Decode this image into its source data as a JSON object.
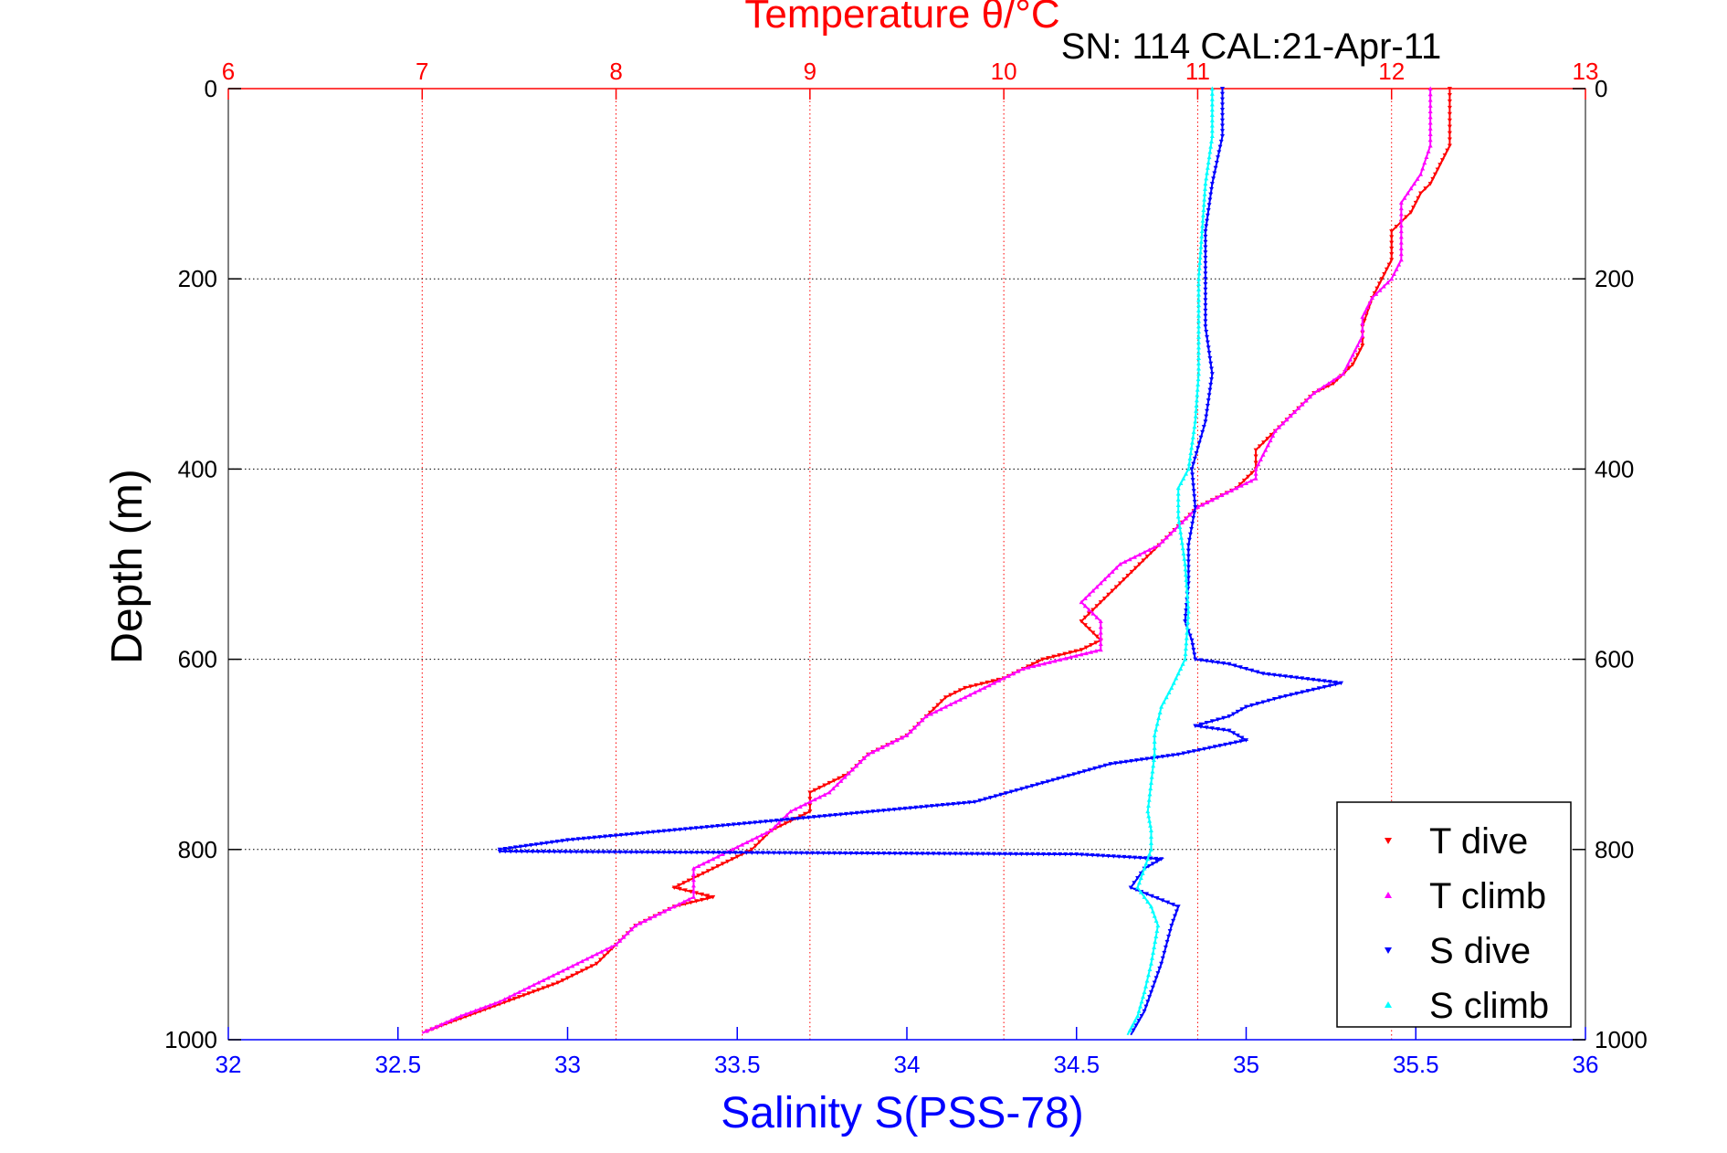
{
  "chart_data": {
    "type": "scatter",
    "title": "Temperature θ/°C",
    "subtitle": "SN: 114  CAL:21-Apr-11",
    "xlabel_bottom": "Salinity S(PSS-78)",
    "xlabel_top": "Temperature θ/°C",
    "ylabel": "Depth (m)",
    "xlim_bottom": [
      32,
      36
    ],
    "xlim_top": [
      6,
      13
    ],
    "ylim": [
      0,
      1000
    ],
    "y_reversed": true,
    "grid": true,
    "legend_position": "bottom-right",
    "ticks_top": [
      "6",
      "7",
      "8",
      "9",
      "10",
      "11",
      "12",
      "13"
    ],
    "ticks_bottom": [
      "32",
      "32.5",
      "33",
      "33.5",
      "34",
      "34.5",
      "35",
      "35.5",
      "36"
    ],
    "ticks_left": [
      "0",
      "200",
      "400",
      "600",
      "800",
      "1000"
    ],
    "ticks_right": [
      "0",
      "200",
      "400",
      "600",
      "800",
      "1000"
    ],
    "colors": {
      "t_axis": "#ff0000",
      "s_axis": "#0000ff",
      "t_dive": "#ff0000",
      "t_climb": "#ff00ff",
      "s_dive": "#0000ff",
      "s_climb": "#00ffff"
    },
    "series": [
      {
        "name": "T dive",
        "axis": "temperature",
        "points": [
          [
            12.3,
            0
          ],
          [
            12.3,
            20
          ],
          [
            12.3,
            40
          ],
          [
            12.3,
            60
          ],
          [
            12.25,
            80
          ],
          [
            12.2,
            100
          ],
          [
            12.15,
            110
          ],
          [
            12.1,
            130
          ],
          [
            12.05,
            140
          ],
          [
            12.0,
            150
          ],
          [
            12.0,
            180
          ],
          [
            11.95,
            200
          ],
          [
            11.9,
            220
          ],
          [
            11.85,
            250
          ],
          [
            11.85,
            270
          ],
          [
            11.8,
            290
          ],
          [
            11.7,
            310
          ],
          [
            11.6,
            320
          ],
          [
            11.5,
            340
          ],
          [
            11.4,
            360
          ],
          [
            11.3,
            380
          ],
          [
            11.3,
            400
          ],
          [
            11.2,
            420
          ],
          [
            11.0,
            440
          ],
          [
            10.9,
            460
          ],
          [
            10.8,
            480
          ],
          [
            10.7,
            500
          ],
          [
            10.6,
            520
          ],
          [
            10.5,
            540
          ],
          [
            10.4,
            560
          ],
          [
            10.5,
            580
          ],
          [
            10.4,
            590
          ],
          [
            10.2,
            600
          ],
          [
            10.0,
            620
          ],
          [
            9.8,
            630
          ],
          [
            9.7,
            640
          ],
          [
            9.6,
            660
          ],
          [
            9.5,
            680
          ],
          [
            9.3,
            700
          ],
          [
            9.2,
            720
          ],
          [
            9.0,
            740
          ],
          [
            9.0,
            760
          ],
          [
            8.8,
            780
          ],
          [
            8.7,
            800
          ],
          [
            8.5,
            820
          ],
          [
            8.3,
            840
          ],
          [
            8.5,
            850
          ],
          [
            8.3,
            860
          ],
          [
            8.1,
            880
          ],
          [
            8.0,
            900
          ],
          [
            7.9,
            920
          ],
          [
            7.7,
            940
          ],
          [
            7.5,
            955
          ],
          [
            7.3,
            970
          ],
          [
            7.1,
            985
          ],
          [
            7.0,
            993
          ]
        ]
      },
      {
        "name": "T climb",
        "axis": "temperature",
        "points": [
          [
            12.2,
            0
          ],
          [
            12.2,
            30
          ],
          [
            12.2,
            60
          ],
          [
            12.15,
            90
          ],
          [
            12.05,
            120
          ],
          [
            12.05,
            150
          ],
          [
            12.05,
            180
          ],
          [
            12.0,
            200
          ],
          [
            11.9,
            220
          ],
          [
            11.85,
            240
          ],
          [
            11.85,
            260
          ],
          [
            11.75,
            300
          ],
          [
            11.6,
            320
          ],
          [
            11.5,
            340
          ],
          [
            11.4,
            360
          ],
          [
            11.35,
            380
          ],
          [
            11.3,
            400
          ],
          [
            11.3,
            410
          ],
          [
            11.2,
            420
          ],
          [
            11.0,
            440
          ],
          [
            10.9,
            460
          ],
          [
            10.8,
            480
          ],
          [
            10.6,
            500
          ],
          [
            10.5,
            520
          ],
          [
            10.4,
            540
          ],
          [
            10.5,
            560
          ],
          [
            10.5,
            590
          ],
          [
            10.4,
            595
          ],
          [
            10.1,
            610
          ],
          [
            9.9,
            630
          ],
          [
            9.8,
            640
          ],
          [
            9.6,
            660
          ],
          [
            9.5,
            680
          ],
          [
            9.3,
            700
          ],
          [
            9.2,
            720
          ],
          [
            9.1,
            740
          ],
          [
            8.9,
            760
          ],
          [
            8.8,
            780
          ],
          [
            8.6,
            800
          ],
          [
            8.4,
            820
          ],
          [
            8.4,
            850
          ],
          [
            8.3,
            860
          ],
          [
            8.1,
            880
          ],
          [
            8.0,
            900
          ],
          [
            7.8,
            920
          ],
          [
            7.6,
            940
          ],
          [
            7.4,
            960
          ],
          [
            7.2,
            975
          ],
          [
            7.0,
            993
          ]
        ]
      },
      {
        "name": "S dive",
        "axis": "salinity",
        "points": [
          [
            34.93,
            0
          ],
          [
            34.93,
            50
          ],
          [
            34.9,
            100
          ],
          [
            34.88,
            150
          ],
          [
            34.88,
            200
          ],
          [
            34.88,
            250
          ],
          [
            34.9,
            300
          ],
          [
            34.88,
            350
          ],
          [
            34.84,
            400
          ],
          [
            34.85,
            440
          ],
          [
            34.83,
            480
          ],
          [
            34.83,
            520
          ],
          [
            34.82,
            560
          ],
          [
            34.84,
            580
          ],
          [
            34.85,
            600
          ],
          [
            34.95,
            605
          ],
          [
            35.05,
            615
          ],
          [
            35.28,
            625
          ],
          [
            35.1,
            640
          ],
          [
            35.0,
            650
          ],
          [
            34.95,
            660
          ],
          [
            34.85,
            670
          ],
          [
            34.95,
            675
          ],
          [
            35.0,
            685
          ],
          [
            34.8,
            700
          ],
          [
            34.6,
            710
          ],
          [
            34.4,
            730
          ],
          [
            34.2,
            750
          ],
          [
            33.9,
            760
          ],
          [
            33.6,
            770
          ],
          [
            33.3,
            780
          ],
          [
            33.0,
            790
          ],
          [
            32.8,
            800
          ],
          [
            32.8,
            802
          ],
          [
            33.3,
            803
          ],
          [
            34.5,
            805
          ],
          [
            34.75,
            810
          ],
          [
            34.7,
            820
          ],
          [
            34.66,
            840
          ],
          [
            34.8,
            860
          ],
          [
            34.78,
            880
          ],
          [
            34.75,
            920
          ],
          [
            34.72,
            950
          ],
          [
            34.7,
            970
          ],
          [
            34.66,
            995
          ]
        ]
      },
      {
        "name": "S climb",
        "axis": "salinity",
        "points": [
          [
            34.9,
            0
          ],
          [
            34.9,
            50
          ],
          [
            34.88,
            100
          ],
          [
            34.87,
            150
          ],
          [
            34.86,
            200
          ],
          [
            34.86,
            250
          ],
          [
            34.86,
            300
          ],
          [
            34.85,
            350
          ],
          [
            34.83,
            400
          ],
          [
            34.8,
            420
          ],
          [
            34.8,
            450
          ],
          [
            34.82,
            500
          ],
          [
            34.83,
            550
          ],
          [
            34.82,
            600
          ],
          [
            34.78,
            630
          ],
          [
            34.75,
            650
          ],
          [
            34.73,
            680
          ],
          [
            34.73,
            700
          ],
          [
            34.72,
            730
          ],
          [
            34.71,
            760
          ],
          [
            34.72,
            780
          ],
          [
            34.72,
            800
          ],
          [
            34.7,
            820
          ],
          [
            34.68,
            840
          ],
          [
            34.72,
            860
          ],
          [
            34.74,
            880
          ],
          [
            34.72,
            920
          ],
          [
            34.7,
            950
          ],
          [
            34.68,
            975
          ],
          [
            34.65,
            995
          ]
        ]
      }
    ]
  }
}
